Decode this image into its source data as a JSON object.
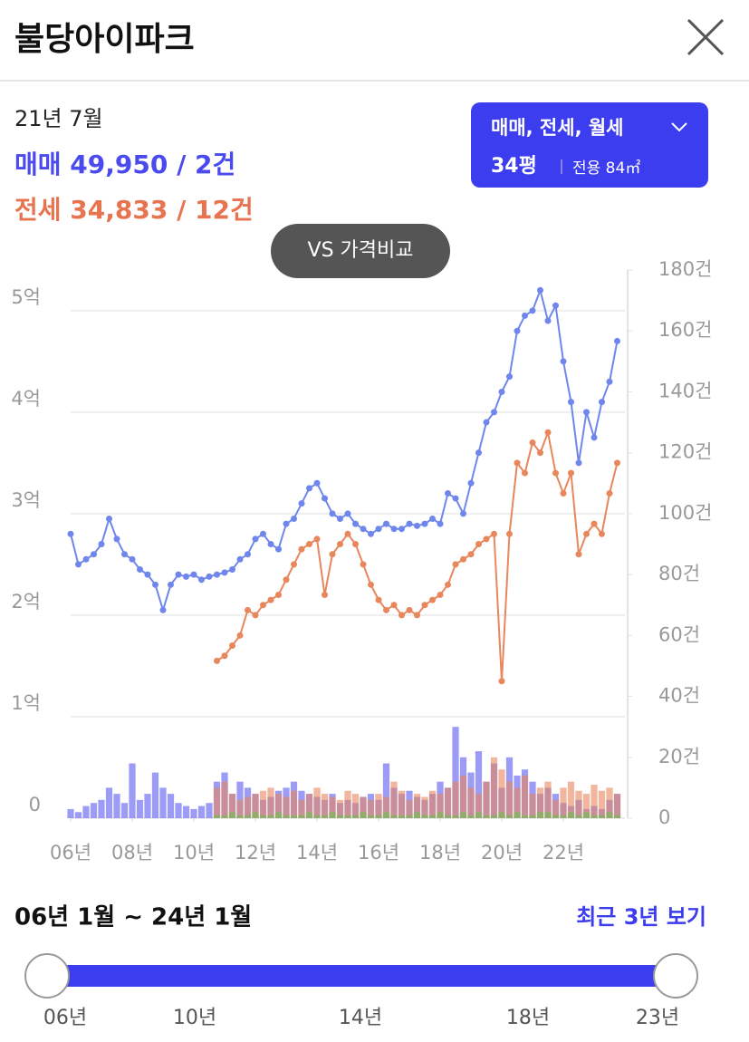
{
  "header": {
    "title": "불당아이파크"
  },
  "summary": {
    "date": "21년 7월",
    "sale": "매매 49,950 / 2건",
    "jeonse": "전세 34,833 / 12건"
  },
  "filter": {
    "type": "매매, 전세, 월세",
    "size": "34평",
    "area": "전용 84㎡"
  },
  "compare_button": "VS 가격비교",
  "chart_data": {
    "type": "line",
    "x": [
      2006,
      2006.25,
      2006.5,
      2006.75,
      2007,
      2007.25,
      2007.5,
      2007.75,
      2008,
      2008.25,
      2008.5,
      2008.75,
      2009,
      2009.25,
      2009.5,
      2009.75,
      2010,
      2010.25,
      2010.5,
      2010.75,
      2011,
      2011.25,
      2011.5,
      2011.75,
      2012,
      2012.25,
      2012.5,
      2012.75,
      2013,
      2013.25,
      2013.5,
      2013.75,
      2014,
      2014.25,
      2014.5,
      2014.75,
      2015,
      2015.25,
      2015.5,
      2015.75,
      2016,
      2016.25,
      2016.5,
      2016.75,
      2017,
      2017.25,
      2017.5,
      2017.75,
      2018,
      2018.25,
      2018.5,
      2018.75,
      2019,
      2019.25,
      2019.5,
      2019.75,
      2020,
      2020.25,
      2020.5,
      2020.75,
      2021,
      2021.25,
      2021.5,
      2021.75,
      2022,
      2022.25,
      2022.5,
      2022.75,
      2023,
      2023.25,
      2023.5,
      2023.75
    ],
    "series": [
      {
        "color": "#6f86ec",
        "values": [
          2.8,
          2.5,
          2.55,
          2.6,
          2.7,
          2.95,
          2.75,
          2.6,
          2.55,
          2.45,
          2.4,
          2.3,
          2.05,
          2.3,
          2.4,
          2.38,
          2.4,
          2.35,
          2.38,
          2.4,
          2.42,
          2.45,
          2.55,
          2.6,
          2.75,
          2.8,
          2.7,
          2.65,
          2.9,
          2.95,
          3.1,
          3.25,
          3.3,
          3.15,
          3.0,
          2.95,
          3.0,
          2.9,
          2.85,
          2.8,
          2.85,
          2.9,
          2.85,
          2.85,
          2.9,
          2.88,
          2.9,
          2.95,
          2.9,
          3.2,
          3.15,
          3.0,
          3.3,
          3.6,
          3.9,
          4.0,
          4.2,
          4.35,
          4.8,
          4.95,
          5.0,
          5.2,
          4.9,
          5.05,
          4.5,
          4.1,
          3.5,
          4.0,
          3.75,
          4.1,
          4.3,
          4.7
        ]
      },
      {
        "color": "#e8865c",
        "values": [
          null,
          null,
          null,
          null,
          null,
          null,
          null,
          null,
          null,
          null,
          null,
          null,
          null,
          null,
          null,
          null,
          null,
          null,
          null,
          1.55,
          1.6,
          1.7,
          1.8,
          2.05,
          2.0,
          2.1,
          2.15,
          2.2,
          2.35,
          2.5,
          2.65,
          2.7,
          2.75,
          2.2,
          2.6,
          2.7,
          2.8,
          2.7,
          2.5,
          2.3,
          2.15,
          2.05,
          2.1,
          2.0,
          2.05,
          2.0,
          2.1,
          2.15,
          2.2,
          2.3,
          2.5,
          2.55,
          2.6,
          2.7,
          2.75,
          2.8,
          1.35,
          2.8,
          3.5,
          3.4,
          3.7,
          3.6,
          3.8,
          3.4,
          3.2,
          3.4,
          2.6,
          2.8,
          2.9,
          2.8,
          3.2,
          3.5
        ]
      },
      {
        "type": "bar",
        "axis": "y2",
        "color": "#5a5af0",
        "values": [
          3,
          2,
          4,
          5,
          6,
          10,
          8,
          5,
          18,
          6,
          8,
          15,
          10,
          8,
          5,
          4,
          3,
          4,
          5,
          12,
          15,
          8,
          12,
          10,
          8,
          6,
          7,
          9,
          10,
          12,
          9,
          8,
          7,
          6,
          8,
          5,
          6,
          5,
          7,
          8,
          6,
          18,
          10,
          8,
          9,
          7,
          6,
          8,
          12,
          10,
          30,
          20,
          15,
          22,
          12,
          18,
          10,
          20,
          14,
          16,
          12,
          8,
          10,
          8,
          5,
          4,
          6,
          3,
          4,
          3,
          6,
          8
        ]
      },
      {
        "type": "bar",
        "axis": "y2",
        "color": "#e8865c",
        "values": [
          null,
          null,
          null,
          null,
          null,
          null,
          null,
          null,
          null,
          null,
          null,
          null,
          null,
          null,
          null,
          null,
          null,
          null,
          null,
          10,
          12,
          8,
          6,
          7,
          8,
          9,
          10,
          8,
          7,
          9,
          6,
          8,
          10,
          8,
          7,
          6,
          9,
          8,
          7,
          6,
          8,
          7,
          12,
          9,
          6,
          8,
          7,
          9,
          8,
          10,
          12,
          14,
          10,
          8,
          12,
          20,
          16,
          12,
          10,
          14,
          8,
          10,
          12,
          6,
          10,
          12,
          9,
          8,
          11,
          9,
          10,
          8
        ]
      },
      {
        "type": "bar",
        "axis": "y2",
        "color": "#6cc24a",
        "values": [
          null,
          null,
          null,
          null,
          null,
          null,
          null,
          null,
          null,
          null,
          null,
          null,
          null,
          null,
          null,
          null,
          null,
          null,
          null,
          1,
          1,
          2,
          1,
          1,
          2,
          1,
          1,
          2,
          1,
          1,
          1,
          2,
          1,
          1,
          2,
          1,
          1,
          1,
          2,
          1,
          1,
          2,
          1,
          1,
          1,
          2,
          1,
          1,
          2,
          1,
          1,
          2,
          1,
          2,
          1,
          1,
          2,
          1,
          2,
          1,
          1,
          2,
          2,
          1,
          1,
          2,
          1,
          2,
          1,
          1,
          2,
          1
        ]
      }
    ],
    "xlim": [
      2006,
      2024
    ],
    "xticks": [
      {
        "value": 2006,
        "label": "06년"
      },
      {
        "value": 2008,
        "label": "08년"
      },
      {
        "value": 2010,
        "label": "10년"
      },
      {
        "value": 2012,
        "label": "12년"
      },
      {
        "value": 2014,
        "label": "14년"
      },
      {
        "value": 2016,
        "label": "16년"
      },
      {
        "value": 2018,
        "label": "18년"
      },
      {
        "value": 2020,
        "label": "20년"
      },
      {
        "value": 2022,
        "label": "22년"
      }
    ],
    "ylim": [
      0,
      5.4
    ],
    "yticks": [
      0,
      {
        "value": 1,
        "label": "1억"
      },
      {
        "value": 2,
        "label": "2억"
      },
      {
        "value": 3,
        "label": "3억"
      },
      {
        "value": 4,
        "label": "4억"
      },
      {
        "value": 5,
        "label": "5억"
      }
    ],
    "y2lim": [
      0,
      180
    ],
    "y2ticks": [
      0,
      {
        "value": 20,
        "label": "20건"
      },
      {
        "value": 40,
        "label": "40건"
      },
      {
        "value": 60,
        "label": "60건"
      },
      {
        "value": 80,
        "label": "80건"
      },
      {
        "value": 100,
        "label": "100건"
      },
      {
        "value": 120,
        "label": "120건"
      },
      {
        "value": 140,
        "label": "140건"
      },
      {
        "value": 160,
        "label": "160건"
      },
      {
        "value": 180,
        "label": "180건"
      }
    ],
    "grid": true
  },
  "range": {
    "label": "06년 1월 ~ 24년 1월",
    "recent": "최근 3년 보기",
    "slider_labels": [
      "06년",
      "10년",
      "14년",
      "18년",
      "23년"
    ]
  }
}
